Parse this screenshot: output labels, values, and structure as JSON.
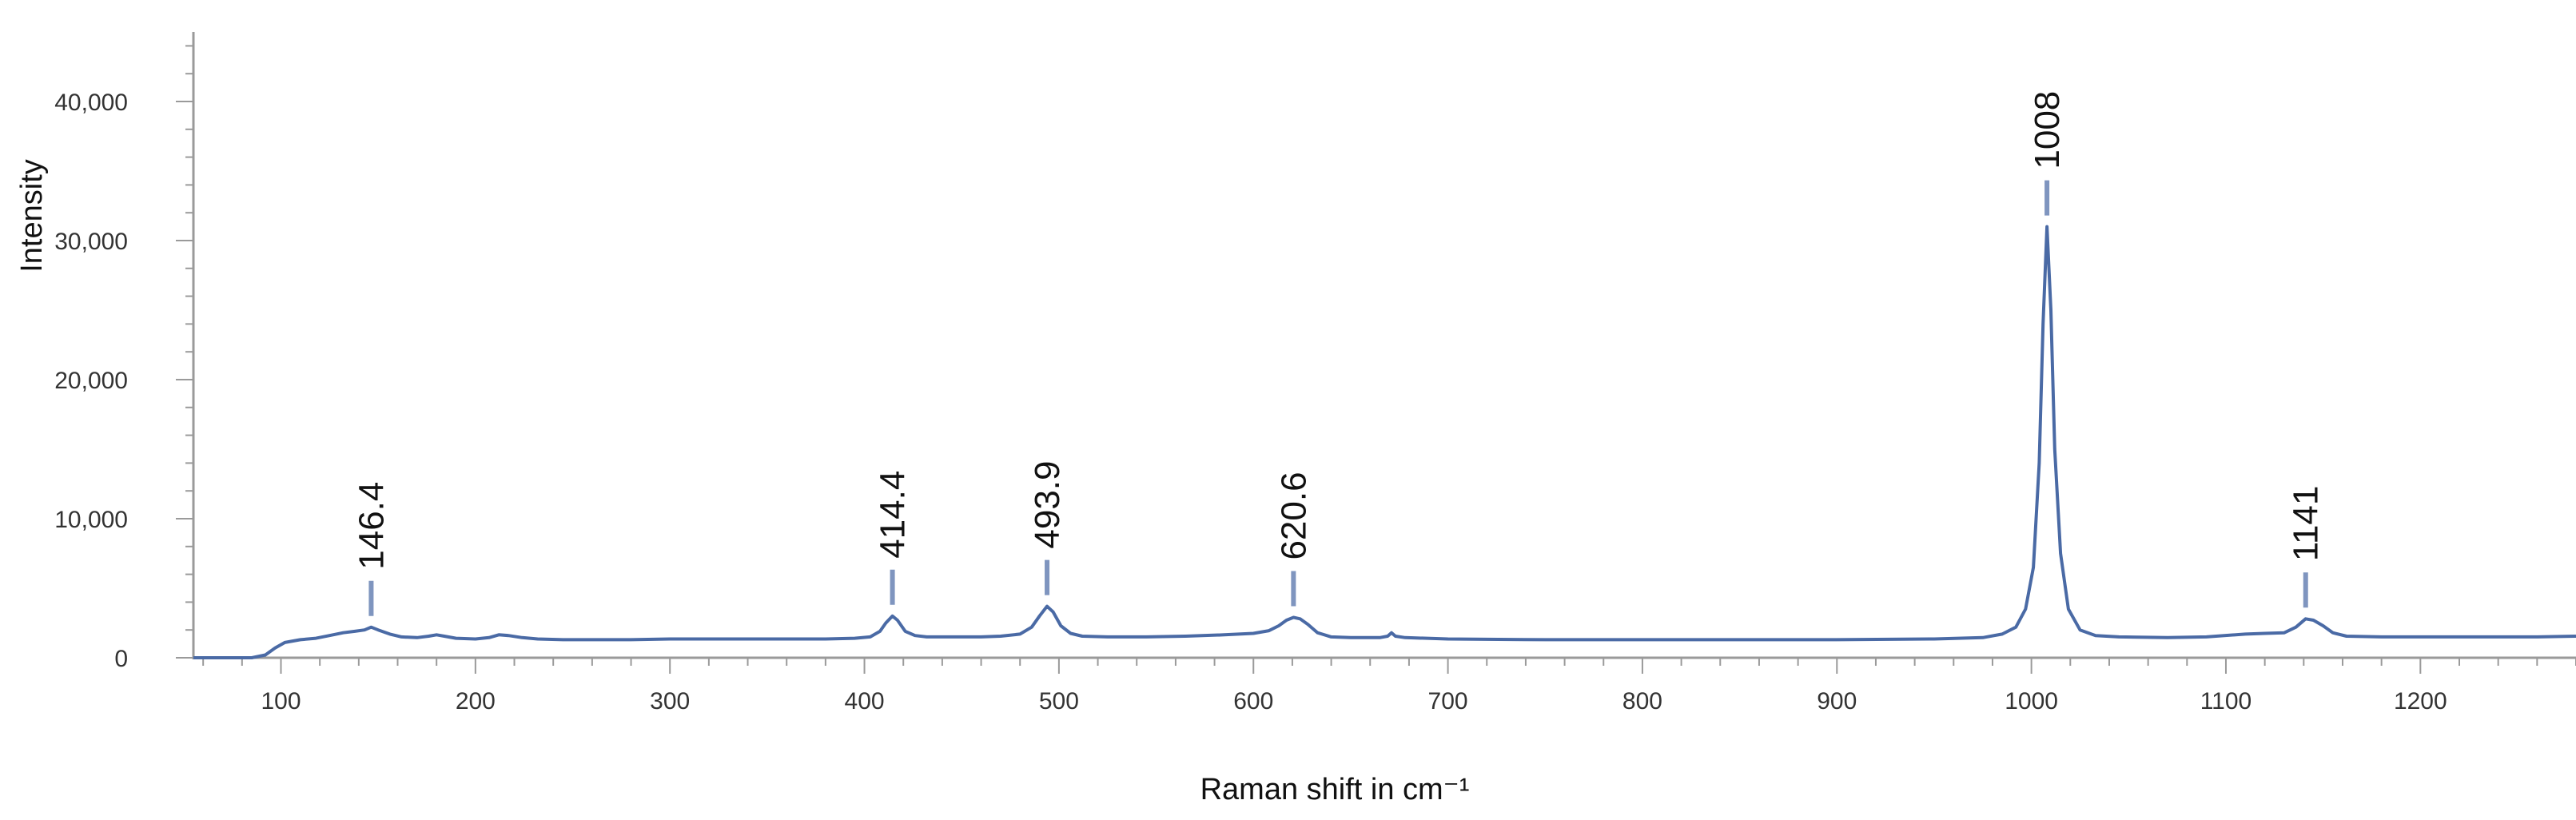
{
  "chart_data": {
    "type": "line",
    "xlabel": "Raman shift in cm⁻¹",
    "ylabel": "Intensity",
    "xlim": [
      55,
      1280
    ],
    "ylim": [
      0,
      45000
    ],
    "x_ticks": [
      100,
      200,
      300,
      400,
      500,
      600,
      700,
      800,
      900,
      1000,
      1100,
      1200
    ],
    "y_ticks": [
      0,
      10000,
      20000,
      30000,
      40000
    ],
    "x_tick_labels": [
      "100",
      "200",
      "300",
      "400",
      "500",
      "600",
      "700",
      "800",
      "900",
      "1000",
      "1100",
      "1200"
    ],
    "y_tick_labels": [
      "0",
      "10,000",
      "20,000",
      "30,000",
      "40,000"
    ],
    "grid": false,
    "line_color": "#4a6aa5",
    "series": [
      {
        "points": [
          [
            55,
            0
          ],
          [
            85,
            0
          ],
          [
            92,
            200
          ],
          [
            97,
            700
          ],
          [
            102,
            1100
          ],
          [
            110,
            1300
          ],
          [
            118,
            1400
          ],
          [
            125,
            1600
          ],
          [
            132,
            1800
          ],
          [
            138,
            1900
          ],
          [
            143,
            2000
          ],
          [
            146.4,
            2200
          ],
          [
            150,
            2000
          ],
          [
            156,
            1700
          ],
          [
            162,
            1500
          ],
          [
            170,
            1450
          ],
          [
            176,
            1550
          ],
          [
            180,
            1650
          ],
          [
            184,
            1550
          ],
          [
            190,
            1400
          ],
          [
            200,
            1350
          ],
          [
            207,
            1450
          ],
          [
            212,
            1650
          ],
          [
            217,
            1600
          ],
          [
            224,
            1450
          ],
          [
            232,
            1350
          ],
          [
            245,
            1300
          ],
          [
            260,
            1300
          ],
          [
            280,
            1300
          ],
          [
            300,
            1350
          ],
          [
            320,
            1350
          ],
          [
            340,
            1350
          ],
          [
            360,
            1350
          ],
          [
            380,
            1350
          ],
          [
            395,
            1400
          ],
          [
            403,
            1500
          ],
          [
            408,
            1900
          ],
          [
            411,
            2500
          ],
          [
            414.4,
            3000
          ],
          [
            417,
            2700
          ],
          [
            421,
            1900
          ],
          [
            426,
            1600
          ],
          [
            432,
            1500
          ],
          [
            445,
            1500
          ],
          [
            460,
            1500
          ],
          [
            470,
            1550
          ],
          [
            480,
            1700
          ],
          [
            486,
            2200
          ],
          [
            490,
            3000
          ],
          [
            493.9,
            3700
          ],
          [
            497,
            3300
          ],
          [
            501,
            2300
          ],
          [
            506,
            1750
          ],
          [
            512,
            1550
          ],
          [
            525,
            1500
          ],
          [
            545,
            1500
          ],
          [
            565,
            1550
          ],
          [
            585,
            1650
          ],
          [
            600,
            1750
          ],
          [
            608,
            1950
          ],
          [
            613,
            2300
          ],
          [
            617,
            2700
          ],
          [
            620.6,
            2900
          ],
          [
            624,
            2800
          ],
          [
            628,
            2400
          ],
          [
            633,
            1800
          ],
          [
            640,
            1500
          ],
          [
            650,
            1450
          ],
          [
            665,
            1450
          ],
          [
            669,
            1550
          ],
          [
            671,
            1800
          ],
          [
            673,
            1550
          ],
          [
            678,
            1450
          ],
          [
            700,
            1350
          ],
          [
            750,
            1300
          ],
          [
            800,
            1300
          ],
          [
            850,
            1300
          ],
          [
            900,
            1300
          ],
          [
            950,
            1350
          ],
          [
            975,
            1450
          ],
          [
            985,
            1700
          ],
          [
            992,
            2200
          ],
          [
            997,
            3500
          ],
          [
            1001,
            6500
          ],
          [
            1004,
            14000
          ],
          [
            1006,
            24000
          ],
          [
            1008,
            31000
          ],
          [
            1010,
            25000
          ],
          [
            1012,
            15000
          ],
          [
            1015,
            7500
          ],
          [
            1019,
            3500
          ],
          [
            1025,
            2000
          ],
          [
            1033,
            1600
          ],
          [
            1045,
            1500
          ],
          [
            1070,
            1450
          ],
          [
            1090,
            1500
          ],
          [
            1110,
            1700
          ],
          [
            1120,
            1750
          ],
          [
            1130,
            1800
          ],
          [
            1136,
            2200
          ],
          [
            1141,
            2800
          ],
          [
            1145,
            2700
          ],
          [
            1150,
            2300
          ],
          [
            1155,
            1800
          ],
          [
            1162,
            1550
          ],
          [
            1180,
            1500
          ],
          [
            1200,
            1500
          ],
          [
            1230,
            1500
          ],
          [
            1260,
            1500
          ],
          [
            1280,
            1550
          ]
        ]
      }
    ],
    "peaks": [
      {
        "label": "146.4",
        "x": 146.4,
        "y": 2200
      },
      {
        "label": "414.4",
        "x": 414.4,
        "y": 3000
      },
      {
        "label": "493.9",
        "x": 493.9,
        "y": 3700
      },
      {
        "label": "620.6",
        "x": 620.6,
        "y": 2900
      },
      {
        "label": "1008",
        "x": 1008,
        "y": 31000
      },
      {
        "label": "1141",
        "x": 1141,
        "y": 2800
      }
    ]
  }
}
